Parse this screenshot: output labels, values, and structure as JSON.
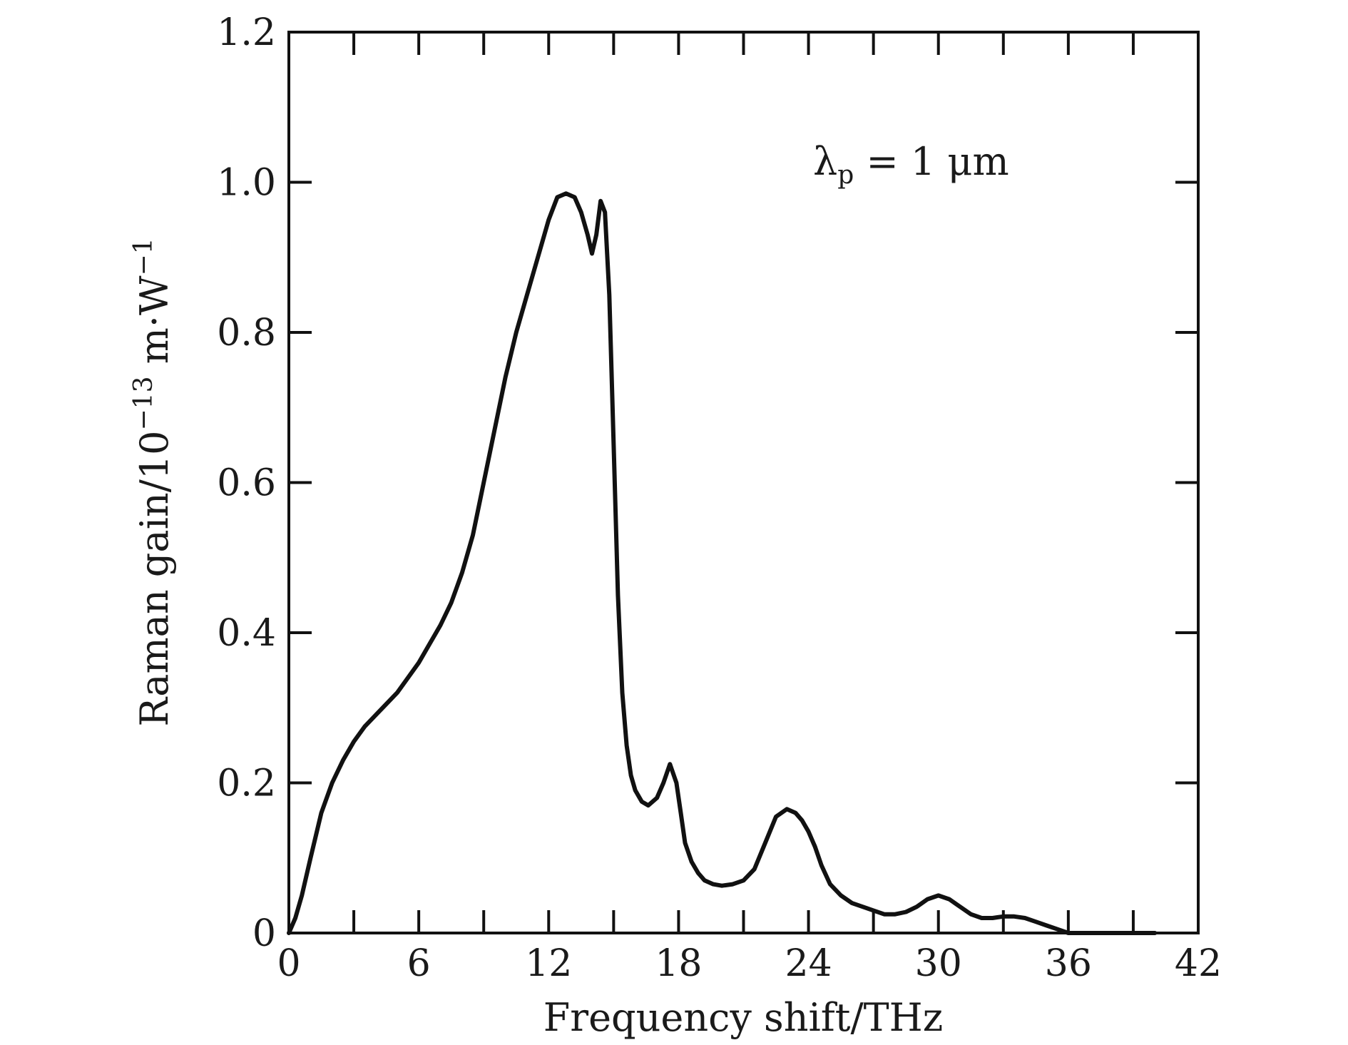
{
  "chart_data": {
    "type": "line",
    "title": "",
    "xlabel": "Frequency shift/THz",
    "ylabel_parts": {
      "base": "Raman gain/10",
      "exponent": "−13",
      "unit": " m·W",
      "unit_exponent": "−1"
    },
    "xlim": [
      0,
      42
    ],
    "ylim": [
      0,
      1.2
    ],
    "x_ticks": [
      0,
      6,
      12,
      18,
      24,
      30,
      36,
      42
    ],
    "x_tick_labels": [
      "0",
      "6",
      "12",
      "18",
      "24",
      "30",
      "36",
      "42"
    ],
    "y_ticks": [
      0,
      0.2,
      0.4,
      0.6,
      0.8,
      1.0,
      1.2
    ],
    "y_tick_labels": [
      "0",
      "0.2",
      "0.4",
      "0.6",
      "0.8",
      "1.0",
      "1.2"
    ],
    "annotation": {
      "lambda": "λ",
      "subscript": "p",
      "rest": " = 1 μm"
    },
    "grid": false,
    "line_color": "#111111",
    "series": [
      {
        "x": [
          0,
          0.3,
          0.6,
          1.0,
          1.5,
          2.0,
          2.5,
          3.0,
          3.5,
          4.0,
          4.5,
          5.0,
          5.5,
          6.0,
          6.5,
          7.0,
          7.5,
          8.0,
          8.5,
          9.0,
          9.5,
          10.0,
          10.5,
          11.0,
          11.5,
          12.0,
          12.4,
          12.8,
          13.2,
          13.5,
          13.8,
          14.0,
          14.2,
          14.4,
          14.6,
          14.8,
          15.0,
          15.2,
          15.4,
          15.6,
          15.8,
          16.0,
          16.3,
          16.6,
          17.0,
          17.3,
          17.6,
          17.9,
          18.1,
          18.3,
          18.6,
          18.9,
          19.2,
          19.6,
          20.0,
          20.5,
          21.0,
          21.5,
          22.0,
          22.5,
          23.0,
          23.4,
          23.7,
          24.0,
          24.3,
          24.6,
          25.0,
          25.5,
          26.0,
          26.5,
          27.0,
          27.5,
          28.0,
          28.5,
          29.0,
          29.5,
          30.0,
          30.5,
          31.0,
          31.5,
          32.0,
          32.5,
          33.0,
          33.5,
          34.0,
          34.5,
          35.0,
          35.5,
          36.0,
          36.5,
          37.0,
          37.5,
          38.0,
          38.5,
          39.0,
          39.5,
          40.0
        ],
        "y": [
          0.0,
          0.02,
          0.05,
          0.1,
          0.16,
          0.2,
          0.23,
          0.255,
          0.275,
          0.29,
          0.305,
          0.32,
          0.34,
          0.36,
          0.385,
          0.41,
          0.44,
          0.48,
          0.53,
          0.6,
          0.67,
          0.74,
          0.8,
          0.85,
          0.9,
          0.95,
          0.98,
          0.985,
          0.98,
          0.96,
          0.93,
          0.905,
          0.93,
          0.975,
          0.96,
          0.85,
          0.65,
          0.45,
          0.32,
          0.25,
          0.21,
          0.19,
          0.175,
          0.17,
          0.18,
          0.2,
          0.225,
          0.2,
          0.16,
          0.12,
          0.095,
          0.08,
          0.07,
          0.065,
          0.063,
          0.065,
          0.07,
          0.085,
          0.12,
          0.155,
          0.165,
          0.16,
          0.15,
          0.135,
          0.115,
          0.09,
          0.065,
          0.05,
          0.04,
          0.035,
          0.03,
          0.025,
          0.025,
          0.028,
          0.035,
          0.045,
          0.05,
          0.045,
          0.035,
          0.025,
          0.02,
          0.02,
          0.022,
          0.022,
          0.02,
          0.015,
          0.01,
          0.005,
          0.0,
          0.0,
          0.0,
          0.0,
          0.0,
          0.0,
          0.0,
          0.0,
          0.0
        ]
      }
    ]
  }
}
